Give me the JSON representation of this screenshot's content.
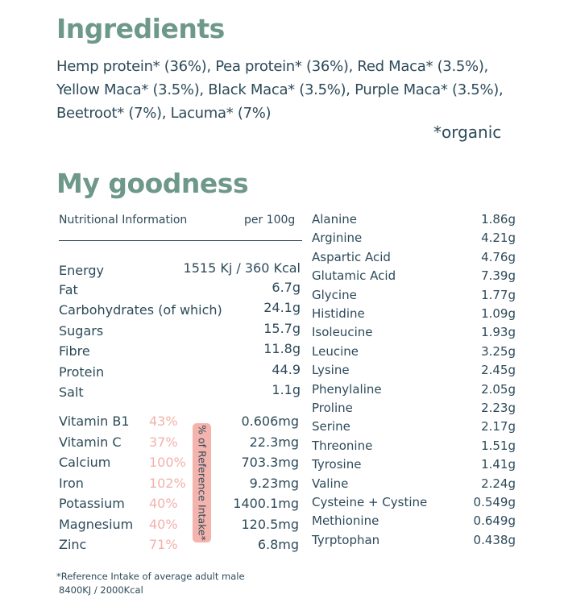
{
  "ingredients": {
    "title": "Ingredients",
    "text": "Hemp protein* (36%),  Pea protein* (36%), Red Maca* (3.5%), Yellow Maca* (3.5%),  Black Maca* (3.5%), Purple Maca* (3.5%), Beetroot* (7%), Lacuma* (7%)",
    "organic_note": "*organic"
  },
  "goodness": {
    "title": "My goodness",
    "header_label": "Nutritional Information",
    "header_unit": "per 100g",
    "nutrients": [
      {
        "label": "Energy",
        "value": "1515 Kj / 360 Kcal"
      },
      {
        "label": "Fat",
        "value": "6.7g"
      },
      {
        "label": "Carbohydrates (of which)",
        "value": "24.1g"
      },
      {
        "label": "Sugars",
        "value": "15.7g"
      },
      {
        "label": "Fibre",
        "value": "11.8g"
      },
      {
        "label": "Protein",
        "value": "44.9"
      },
      {
        "label": "Salt",
        "value": "1.1g"
      }
    ],
    "vitamins": [
      {
        "label": "Vitamin B1",
        "percent": "43%",
        "value": "0.606mg"
      },
      {
        "label": "Vitamin C",
        "percent": "37%",
        "value": "22.3mg"
      },
      {
        "label": "Calcium",
        "percent": "100%",
        "value": "703.3mg"
      },
      {
        "label": "Iron",
        "percent": "102%",
        "value": "9.23mg"
      },
      {
        "label": "Potassium",
        "percent": "40%",
        "value": "1400.1mg"
      },
      {
        "label": "Magnesium",
        "percent": "40%",
        "value": "120.5mg"
      },
      {
        "label": "Zinc",
        "percent": "71%",
        "value": "6.8mg"
      }
    ],
    "ri_label": "% of Reference Intake*",
    "footnote_1": "*Reference Intake of average adult male",
    "footnote_2": "8400KJ / 2000Kcal",
    "amino_acids": [
      {
        "label": "Alanine",
        "value": "1.86g"
      },
      {
        "label": "Arginine",
        "value": "4.21g"
      },
      {
        "label": "Aspartic Acid",
        "value": "4.76g"
      },
      {
        "label": "Glutamic Acid",
        "value": "7.39g"
      },
      {
        "label": "Glycine",
        "value": "1.77g"
      },
      {
        "label": "Histidine",
        "value": "1.09g"
      },
      {
        "label": "Isoleucine",
        "value": "1.93g"
      },
      {
        "label": "Leucine",
        "value": "3.25g"
      },
      {
        "label": "Lysine",
        "value": "2.45g"
      },
      {
        "label": "Phenylaline",
        "value": "2.05g"
      },
      {
        "label": "Proline",
        "value": "2.23g"
      },
      {
        "label": "Serine",
        "value": "2.17g"
      },
      {
        "label": "Threonine",
        "value": "1.51g"
      },
      {
        "label": "Tyrosine",
        "value": "1.41g"
      },
      {
        "label": "Valine",
        "value": "2.24g"
      },
      {
        "label": "Cysteine + Cystine",
        "value": "0.549g"
      },
      {
        "label": "Methionine",
        "value": "0.649g"
      },
      {
        "label": "Tyrptophan",
        "value": "0.438g"
      }
    ]
  }
}
